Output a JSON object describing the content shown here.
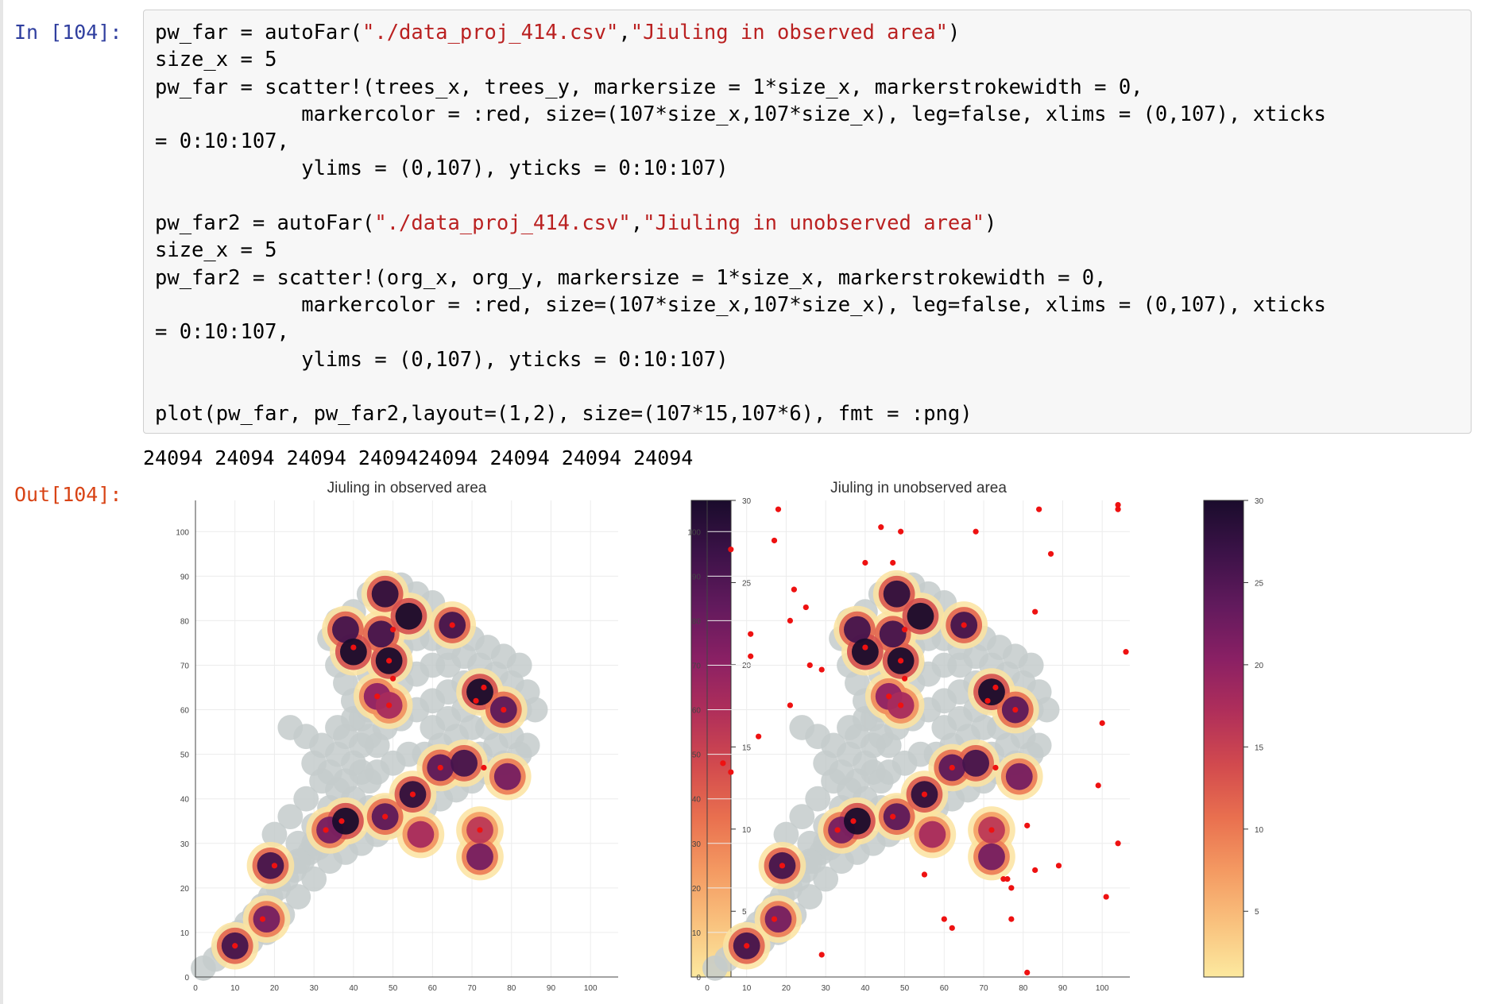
{
  "notebook": {
    "input_prompt": "In [104]:",
    "output_prompt": "Out[104]:",
    "code_lines": [
      [
        {
          "t": "pw_far = autoFar("
        },
        {
          "s": "\"./data_proj_414.csv\""
        },
        {
          "t": ","
        },
        {
          "s": "\"Jiuling in observed area\""
        },
        {
          "t": ")"
        }
      ],
      [
        {
          "t": "size_x = 5"
        }
      ],
      [
        {
          "t": "pw_far = scatter!(trees_x, trees_y, markersize = 1*size_x, markerstrokewidth = 0,"
        }
      ],
      [
        {
          "t": "            markercolor = :red, size=(107*size_x,107*size_x), leg=false, xlims = (0,107), xticks"
        }
      ],
      [
        {
          "t": "= 0:10:107,"
        }
      ],
      [
        {
          "t": "            ylims = (0,107), yticks = 0:10:107)"
        }
      ],
      [
        {
          "t": ""
        }
      ],
      [
        {
          "t": "pw_far2 = autoFar("
        },
        {
          "s": "\"./data_proj_414.csv\""
        },
        {
          "t": ","
        },
        {
          "s": "\"Jiuling in unobserved area\""
        },
        {
          "t": ")"
        }
      ],
      [
        {
          "t": "size_x = 5"
        }
      ],
      [
        {
          "t": "pw_far2 = scatter!(org_x, org_y, markersize = 1*size_x, markerstrokewidth = 0,"
        }
      ],
      [
        {
          "t": "            markercolor = :red, size=(107*size_x,107*size_x), leg=false, xlims = (0,107), xticks"
        }
      ],
      [
        {
          "t": "= 0:10:107,"
        }
      ],
      [
        {
          "t": "            ylims = (0,107), yticks = 0:10:107)"
        }
      ],
      [
        {
          "t": ""
        }
      ],
      [
        {
          "t": "plot(pw_far, pw_far2,layout=(1,2), size=(107*15,107*6), fmt = :png)"
        }
      ]
    ],
    "stdout": "24094 24094 24094 2409424094 24094 24094 24094"
  },
  "chart_data": [
    {
      "type": "scatter",
      "title": "Jiuling in observed area",
      "xlim": [
        0,
        107
      ],
      "ylim": [
        0,
        107
      ],
      "xticks": [
        0,
        10,
        20,
        30,
        40,
        50,
        60,
        70,
        80,
        90,
        100
      ],
      "yticks": [
        0,
        10,
        20,
        30,
        40,
        50,
        60,
        70,
        80,
        90,
        100
      ],
      "grid": true,
      "colorbar": {
        "min": 1,
        "max": 30,
        "ticks": [
          5,
          10,
          15,
          20,
          25,
          30
        ]
      },
      "cluster_blobs": [
        {
          "x": 10,
          "y": 7,
          "v": 26
        },
        {
          "x": 18,
          "y": 13,
          "v": 22
        },
        {
          "x": 19,
          "y": 25,
          "v": 26
        },
        {
          "x": 34,
          "y": 33,
          "v": 22
        },
        {
          "x": 38,
          "y": 35,
          "v": 30
        },
        {
          "x": 48,
          "y": 36,
          "v": 24
        },
        {
          "x": 55,
          "y": 41,
          "v": 28
        },
        {
          "x": 57,
          "y": 32,
          "v": 18
        },
        {
          "x": 62,
          "y": 47,
          "v": 24
        },
        {
          "x": 68,
          "y": 48,
          "v": 26
        },
        {
          "x": 72,
          "y": 33,
          "v": 16
        },
        {
          "x": 72,
          "y": 27,
          "v": 22
        },
        {
          "x": 79,
          "y": 45,
          "v": 22
        },
        {
          "x": 46,
          "y": 63,
          "v": 20
        },
        {
          "x": 49,
          "y": 61,
          "v": 18
        },
        {
          "x": 49,
          "y": 71,
          "v": 30
        },
        {
          "x": 47,
          "y": 77,
          "v": 26
        },
        {
          "x": 38,
          "y": 78,
          "v": 26
        },
        {
          "x": 40,
          "y": 73,
          "v": 30
        },
        {
          "x": 48,
          "y": 86,
          "v": 28
        },
        {
          "x": 54,
          "y": 81,
          "v": 30
        },
        {
          "x": 65,
          "y": 79,
          "v": 26
        },
        {
          "x": 72,
          "y": 64,
          "v": 30
        },
        {
          "x": 78,
          "y": 60,
          "v": 24
        }
      ],
      "red_points": [
        {
          "x": 10,
          "y": 7
        },
        {
          "x": 17,
          "y": 13
        },
        {
          "x": 20,
          "y": 25
        },
        {
          "x": 33,
          "y": 33
        },
        {
          "x": 37,
          "y": 35
        },
        {
          "x": 48,
          "y": 36
        },
        {
          "x": 55,
          "y": 41
        },
        {
          "x": 62,
          "y": 47
        },
        {
          "x": 73,
          "y": 47
        },
        {
          "x": 72,
          "y": 33
        },
        {
          "x": 46,
          "y": 63
        },
        {
          "x": 49,
          "y": 61
        },
        {
          "x": 49,
          "y": 71
        },
        {
          "x": 50,
          "y": 78
        },
        {
          "x": 50,
          "y": 67
        },
        {
          "x": 40,
          "y": 74
        },
        {
          "x": 65,
          "y": 79
        },
        {
          "x": 73,
          "y": 65
        },
        {
          "x": 71,
          "y": 62
        },
        {
          "x": 78,
          "y": 60
        }
      ]
    },
    {
      "type": "scatter",
      "title": "Jiuling in unobserved area",
      "xlim": [
        0,
        107
      ],
      "ylim": [
        0,
        107
      ],
      "xticks": [
        0,
        10,
        20,
        30,
        40,
        50,
        60,
        70,
        80,
        90,
        100
      ],
      "yticks": [
        0,
        10,
        20,
        30,
        40,
        50,
        60,
        70,
        80,
        90,
        100
      ],
      "grid": true,
      "colorbar": {
        "min": 1,
        "max": 30,
        "ticks": [
          5,
          10,
          15,
          20,
          25,
          30
        ]
      },
      "cluster_blobs": [
        {
          "x": 10,
          "y": 7,
          "v": 26
        },
        {
          "x": 18,
          "y": 13,
          "v": 22
        },
        {
          "x": 19,
          "y": 25,
          "v": 26
        },
        {
          "x": 34,
          "y": 33,
          "v": 22
        },
        {
          "x": 38,
          "y": 35,
          "v": 30
        },
        {
          "x": 48,
          "y": 36,
          "v": 24
        },
        {
          "x": 55,
          "y": 41,
          "v": 28
        },
        {
          "x": 57,
          "y": 32,
          "v": 18
        },
        {
          "x": 62,
          "y": 47,
          "v": 24
        },
        {
          "x": 68,
          "y": 48,
          "v": 26
        },
        {
          "x": 72,
          "y": 33,
          "v": 16
        },
        {
          "x": 72,
          "y": 27,
          "v": 22
        },
        {
          "x": 79,
          "y": 45,
          "v": 22
        },
        {
          "x": 46,
          "y": 63,
          "v": 20
        },
        {
          "x": 49,
          "y": 61,
          "v": 18
        },
        {
          "x": 49,
          "y": 71,
          "v": 30
        },
        {
          "x": 47,
          "y": 77,
          "v": 26
        },
        {
          "x": 38,
          "y": 78,
          "v": 26
        },
        {
          "x": 40,
          "y": 73,
          "v": 30
        },
        {
          "x": 48,
          "y": 86,
          "v": 28
        },
        {
          "x": 54,
          "y": 81,
          "v": 30
        },
        {
          "x": 65,
          "y": 79,
          "v": 26
        },
        {
          "x": 72,
          "y": 64,
          "v": 30
        },
        {
          "x": 78,
          "y": 60,
          "v": 24
        }
      ],
      "red_points": [
        {
          "x": 10,
          "y": 7
        },
        {
          "x": 17,
          "y": 13
        },
        {
          "x": 19,
          "y": 25
        },
        {
          "x": 33,
          "y": 33
        },
        {
          "x": 37,
          "y": 35
        },
        {
          "x": 47,
          "y": 36
        },
        {
          "x": 55,
          "y": 41
        },
        {
          "x": 62,
          "y": 47
        },
        {
          "x": 73,
          "y": 47
        },
        {
          "x": 72,
          "y": 33
        },
        {
          "x": 46,
          "y": 63
        },
        {
          "x": 49,
          "y": 61
        },
        {
          "x": 49,
          "y": 71
        },
        {
          "x": 50,
          "y": 78
        },
        {
          "x": 50,
          "y": 67
        },
        {
          "x": 40,
          "y": 74
        },
        {
          "x": 65,
          "y": 79
        },
        {
          "x": 73,
          "y": 65
        },
        {
          "x": 71,
          "y": 62
        },
        {
          "x": 78,
          "y": 60
        },
        {
          "x": 6,
          "y": 96
        },
        {
          "x": 18,
          "y": 105
        },
        {
          "x": 17,
          "y": 98
        },
        {
          "x": 44,
          "y": 101
        },
        {
          "x": 49,
          "y": 100
        },
        {
          "x": 40,
          "y": 93
        },
        {
          "x": 47,
          "y": 93
        },
        {
          "x": 68,
          "y": 100
        },
        {
          "x": 84,
          "y": 105
        },
        {
          "x": 104,
          "y": 106
        },
        {
          "x": 104,
          "y": 105
        },
        {
          "x": 87,
          "y": 95
        },
        {
          "x": 83,
          "y": 82
        },
        {
          "x": 106,
          "y": 73
        },
        {
          "x": 22,
          "y": 87
        },
        {
          "x": 21,
          "y": 80
        },
        {
          "x": 25,
          "y": 83
        },
        {
          "x": 11,
          "y": 77
        },
        {
          "x": 11,
          "y": 72
        },
        {
          "x": 26,
          "y": 70
        },
        {
          "x": 29,
          "y": 69
        },
        {
          "x": 21,
          "y": 61
        },
        {
          "x": 13,
          "y": 54
        },
        {
          "x": 4,
          "y": 48
        },
        {
          "x": 6,
          "y": 46
        },
        {
          "x": 100,
          "y": 57
        },
        {
          "x": 99,
          "y": 43
        },
        {
          "x": 104,
          "y": 30
        },
        {
          "x": 81,
          "y": 34
        },
        {
          "x": 55,
          "y": 23
        },
        {
          "x": 75,
          "y": 22
        },
        {
          "x": 76,
          "y": 22
        },
        {
          "x": 77,
          "y": 20
        },
        {
          "x": 83,
          "y": 24
        },
        {
          "x": 89,
          "y": 25
        },
        {
          "x": 101,
          "y": 18
        },
        {
          "x": 60,
          "y": 13
        },
        {
          "x": 62,
          "y": 11
        },
        {
          "x": 77,
          "y": 13
        },
        {
          "x": 29,
          "y": 5
        },
        {
          "x": 81,
          "y": 1
        }
      ]
    }
  ],
  "gray_cloud": [
    [
      2,
      2
    ],
    [
      5,
      4
    ],
    [
      7,
      6
    ],
    [
      9,
      9
    ],
    [
      11,
      10
    ],
    [
      13,
      12
    ],
    [
      15,
      14
    ],
    [
      17,
      16
    ],
    [
      19,
      18
    ],
    [
      21,
      20
    ],
    [
      23,
      22
    ],
    [
      25,
      24
    ],
    [
      27,
      26
    ],
    [
      29,
      28
    ],
    [
      31,
      29
    ],
    [
      14,
      8
    ],
    [
      18,
      10
    ],
    [
      22,
      14
    ],
    [
      26,
      18
    ],
    [
      30,
      22
    ],
    [
      34,
      26
    ],
    [
      38,
      28
    ],
    [
      42,
      30
    ],
    [
      46,
      32
    ],
    [
      50,
      34
    ],
    [
      54,
      36
    ],
    [
      58,
      38
    ],
    [
      62,
      40
    ],
    [
      66,
      42
    ],
    [
      70,
      44
    ],
    [
      74,
      46
    ],
    [
      78,
      48
    ],
    [
      82,
      50
    ],
    [
      84,
      52
    ],
    [
      80,
      54
    ],
    [
      76,
      52
    ],
    [
      72,
      50
    ],
    [
      68,
      48
    ],
    [
      64,
      46
    ],
    [
      60,
      44
    ],
    [
      56,
      42
    ],
    [
      52,
      40
    ],
    [
      48,
      38
    ],
    [
      44,
      38
    ],
    [
      40,
      40
    ],
    [
      36,
      42
    ],
    [
      32,
      44
    ],
    [
      28,
      40
    ],
    [
      24,
      36
    ],
    [
      20,
      32
    ],
    [
      26,
      30
    ],
    [
      30,
      34
    ],
    [
      34,
      38
    ],
    [
      38,
      44
    ],
    [
      42,
      46
    ],
    [
      46,
      46
    ],
    [
      50,
      48
    ],
    [
      54,
      50
    ],
    [
      58,
      50
    ],
    [
      62,
      52
    ],
    [
      66,
      54
    ],
    [
      70,
      56
    ],
    [
      74,
      56
    ],
    [
      78,
      58
    ],
    [
      82,
      60
    ],
    [
      84,
      64
    ],
    [
      80,
      66
    ],
    [
      76,
      68
    ],
    [
      72,
      70
    ],
    [
      68,
      72
    ],
    [
      64,
      74
    ],
    [
      60,
      76
    ],
    [
      58,
      80
    ],
    [
      60,
      84
    ],
    [
      56,
      86
    ],
    [
      52,
      88
    ],
    [
      48,
      88
    ],
    [
      44,
      86
    ],
    [
      40,
      82
    ],
    [
      36,
      80
    ],
    [
      34,
      76
    ],
    [
      36,
      70
    ],
    [
      38,
      66
    ],
    [
      40,
      62
    ],
    [
      42,
      58
    ],
    [
      44,
      54
    ],
    [
      46,
      52
    ],
    [
      48,
      56
    ],
    [
      52,
      58
    ],
    [
      56,
      60
    ],
    [
      60,
      62
    ],
    [
      64,
      64
    ],
    [
      68,
      66
    ],
    [
      72,
      62
    ],
    [
      76,
      62
    ],
    [
      56,
      68
    ],
    [
      60,
      70
    ],
    [
      64,
      70
    ],
    [
      52,
      74
    ],
    [
      56,
      76
    ],
    [
      24,
      56
    ],
    [
      28,
      54
    ],
    [
      32,
      52
    ],
    [
      36,
      50
    ],
    [
      30,
      48
    ],
    [
      34,
      46
    ],
    [
      38,
      54
    ],
    [
      42,
      52
    ],
    [
      26,
      26
    ],
    [
      30,
      30
    ],
    [
      86,
      60
    ],
    [
      82,
      70
    ],
    [
      78,
      72
    ],
    [
      74,
      74
    ],
    [
      70,
      76
    ],
    [
      66,
      78
    ],
    [
      62,
      80
    ],
    [
      68,
      60
    ],
    [
      64,
      58
    ],
    [
      60,
      56
    ],
    [
      44,
      44
    ],
    [
      40,
      48
    ],
    [
      36,
      56
    ],
    [
      40,
      58
    ],
    [
      44,
      60
    ],
    [
      48,
      64
    ],
    [
      52,
      66
    ],
    [
      44,
      68
    ],
    [
      48,
      70
    ],
    [
      52,
      70
    ]
  ],
  "colorbar_gradient": [
    "#fce99f",
    "#f9c27e",
    "#f49a62",
    "#e9704f",
    "#d24a4e",
    "#b02f5a",
    "#8a2064",
    "#621a5d",
    "#3c1248",
    "#1a0c2c"
  ]
}
